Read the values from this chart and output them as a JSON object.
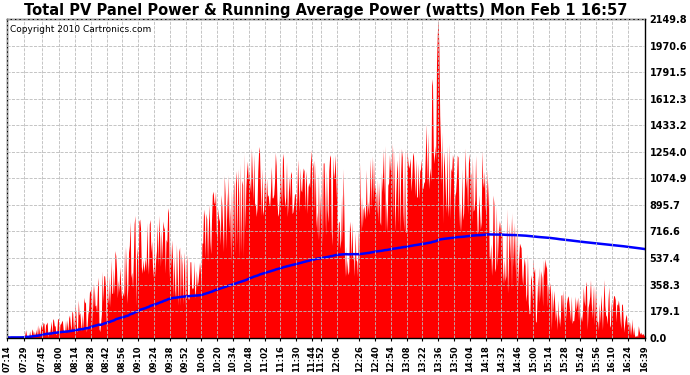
{
  "title": "Total PV Panel Power & Running Average Power (watts) Mon Feb 1 16:57",
  "copyright": "Copyright 2010 Cartronics.com",
  "bg_color": "#ffffff",
  "plot_bg_color": "#ffffff",
  "grid_color": "#aaaaaa",
  "fill_color": "#ff0000",
  "line_color": "#0000ff",
  "ylim": [
    0,
    2149.8
  ],
  "yticks": [
    0.0,
    179.1,
    358.3,
    537.4,
    716.6,
    895.7,
    1074.9,
    1254.0,
    1433.2,
    1612.3,
    1791.5,
    1970.6,
    2149.8
  ],
  "ytick_labels": [
    "0.0",
    "179.1",
    "358.3",
    "537.4",
    "716.6",
    "895.7",
    "1074.9",
    "1254.0",
    "1433.2",
    "1612.3",
    "1791.5",
    "1970.6",
    "2149.8"
  ],
  "xtick_labels": [
    "07:14",
    "07:29",
    "07:45",
    "08:00",
    "08:14",
    "08:28",
    "08:42",
    "08:56",
    "09:10",
    "09:24",
    "09:38",
    "09:52",
    "10:06",
    "10:20",
    "10:34",
    "10:48",
    "11:02",
    "11:16",
    "11:30",
    "11:44",
    "11:52",
    "12:06",
    "12:26",
    "12:40",
    "12:54",
    "13:08",
    "13:22",
    "13:36",
    "13:50",
    "14:04",
    "14:18",
    "14:32",
    "14:46",
    "15:00",
    "15:14",
    "15:28",
    "15:42",
    "15:56",
    "16:10",
    "16:24",
    "16:39"
  ]
}
